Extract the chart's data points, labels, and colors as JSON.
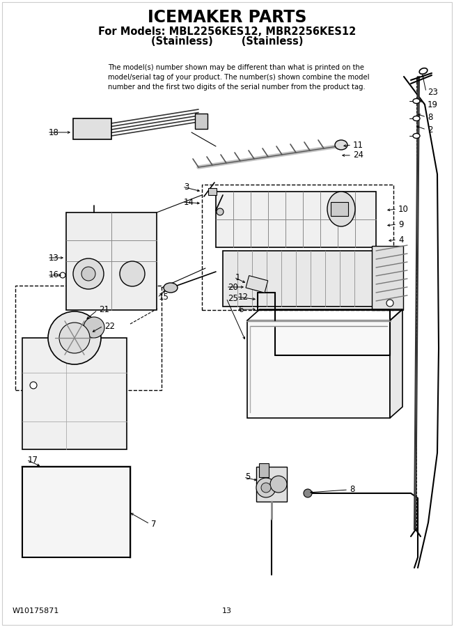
{
  "title": "ICEMAKER PARTS",
  "subtitle1": "For Models: MBL2256KES12, MBR2256KES12",
  "subtitle2": "(Stainless)        (Stainless)",
  "note": "The model(s) number shown may be different than what is printed on the\nmodel/serial tag of your product. The number(s) shown combine the model\nnumber and the first two digits of the serial number from the product tag.",
  "footer_left": "W10175871",
  "footer_center": "13",
  "bg_color": "#ffffff",
  "text_color": "#000000"
}
